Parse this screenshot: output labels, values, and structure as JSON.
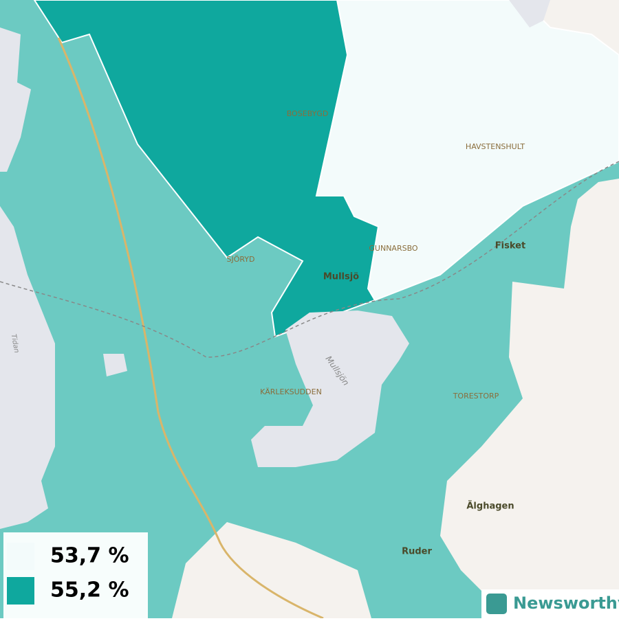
{
  "places": [
    {
      "label": "BOSEBYGD"
    },
    {
      "label": "HAVSTENSHULT"
    },
    {
      "label": "GUNNARSBO"
    },
    {
      "label": "SJÖRYD"
    },
    {
      "label": "Mullsjö"
    },
    {
      "label": "Fisket"
    },
    {
      "label": "KÄRLEKSUDDEN"
    },
    {
      "label": "TORESTORP"
    },
    {
      "label": "Älghagen"
    },
    {
      "label": "Ruder"
    }
  ],
  "water": [
    {
      "label": "Mullsjön"
    },
    {
      "label": "Tidan"
    }
  ],
  "legend": [
    {
      "label": "53,7 %"
    },
    {
      "label": "55,2 %"
    }
  ],
  "brand": "Newsworthy"
}
